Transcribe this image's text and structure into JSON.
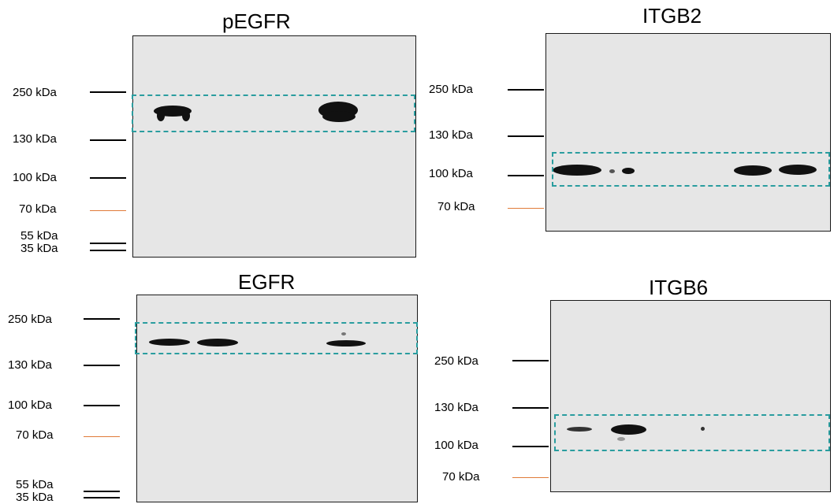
{
  "panels": [
    {
      "title": "pEGFR",
      "markers": [
        {
          "label": "250 kDa",
          "color": "#000000"
        },
        {
          "label": "130 kDa",
          "color": "#000000"
        },
        {
          "label": "100 kDa",
          "color": "#000000"
        },
        {
          "label": "70 kDa",
          "color": "#e07b39"
        },
        {
          "label": "55 kDa",
          "color": "#000000"
        },
        {
          "label": "35 kDa",
          "color": "#000000"
        }
      ]
    },
    {
      "title": "ITGB2",
      "markers": [
        {
          "label": "250 kDa",
          "color": "#000000"
        },
        {
          "label": "130 kDa",
          "color": "#000000"
        },
        {
          "label": "100 kDa",
          "color": "#000000"
        },
        {
          "label": "70 kDa",
          "color": "#e07b39"
        }
      ]
    },
    {
      "title": "EGFR",
      "markers": [
        {
          "label": "250 kDa",
          "color": "#000000"
        },
        {
          "label": "130 kDa",
          "color": "#000000"
        },
        {
          "label": "100 kDa",
          "color": "#000000"
        },
        {
          "label": "70 kDa",
          "color": "#e07b39"
        },
        {
          "label": "55 kDa",
          "color": "#000000"
        },
        {
          "label": "35 kDa",
          "color": "#000000"
        }
      ]
    },
    {
      "title": "ITGB6",
      "markers": [
        {
          "label": "250 kDa",
          "color": "#000000"
        },
        {
          "label": "130 kDa",
          "color": "#000000"
        },
        {
          "label": "100 kDa",
          "color": "#000000"
        },
        {
          "label": "70 kDa",
          "color": "#e07b39"
        }
      ]
    }
  ],
  "colors": {
    "blot_background": "#e6e6e6",
    "highlight_box": "#2a9d9f",
    "band": "#111111"
  }
}
